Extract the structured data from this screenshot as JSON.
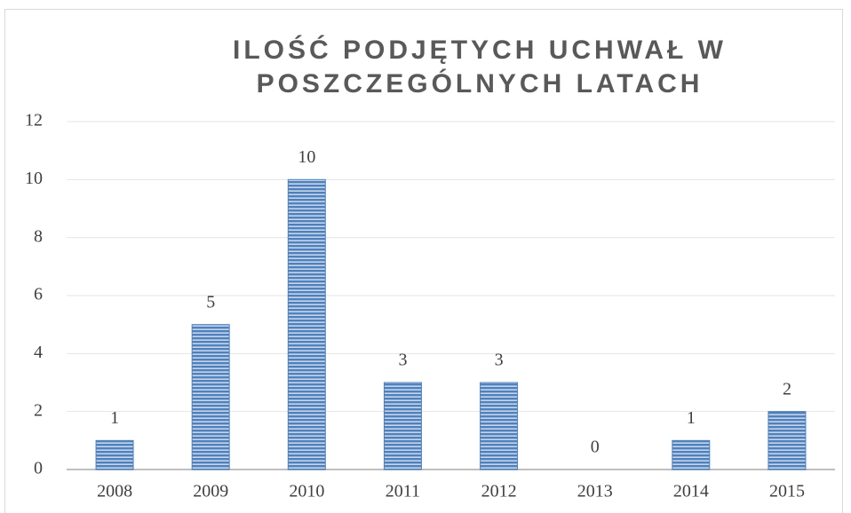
{
  "chart_data": {
    "type": "bar",
    "title": "ILOŚĆ PODJĘTYCH UCHWAŁ W POSZCZEGÓLNYCH LATACH",
    "categories": [
      "2008",
      "2009",
      "2010",
      "2011",
      "2012",
      "2013",
      "2014",
      "2015"
    ],
    "values": [
      1,
      5,
      10,
      3,
      3,
      0,
      1,
      2
    ],
    "color": "#4f81bd",
    "ylim": [
      0,
      12
    ],
    "yticks": [
      0,
      2,
      4,
      6,
      8,
      10,
      12
    ],
    "grid": true
  }
}
